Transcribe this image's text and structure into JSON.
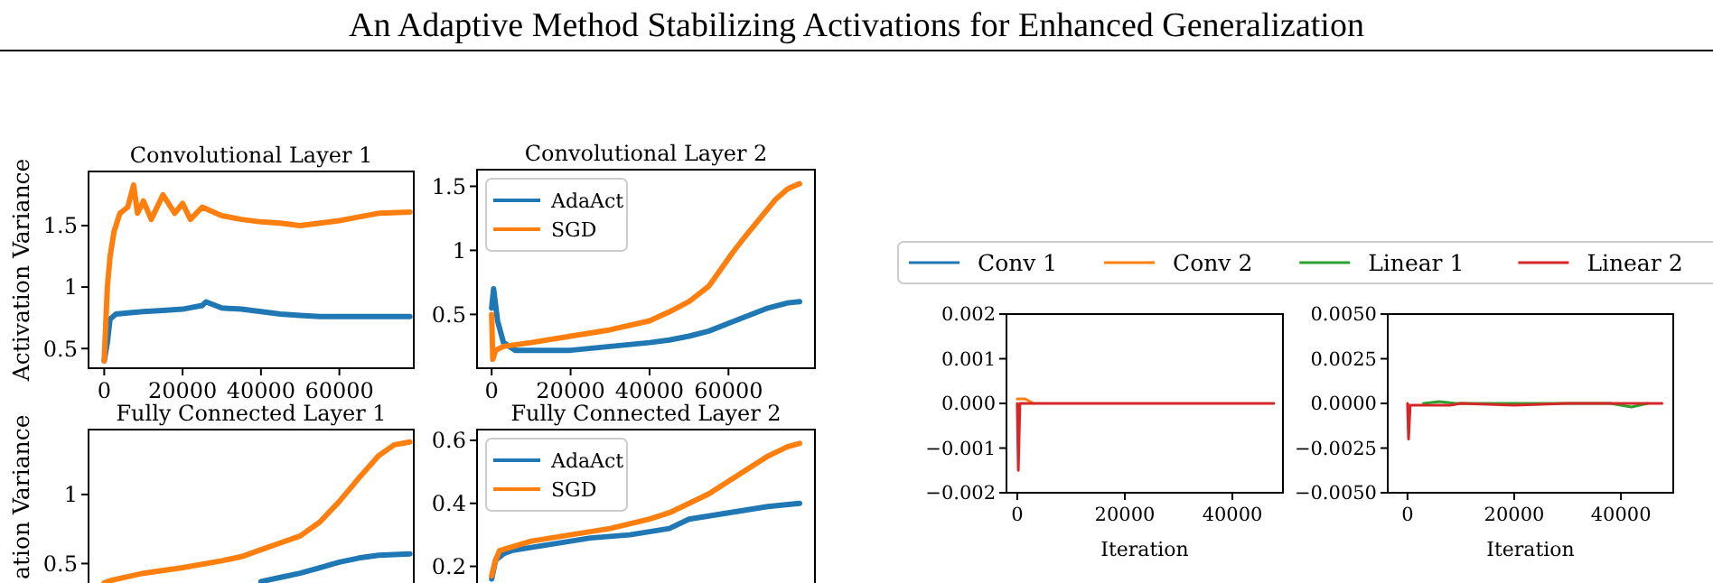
{
  "chart_data": [
    {
      "type": "line",
      "title": "Convolutional Layer 1",
      "ylabel": "Activation Variance",
      "annotations": [
        "An Adaptive Method Stabilizing Activations for Enhanced Generalization"
      ],
      "xlim": [
        -4000,
        79000
      ],
      "ylim": [
        0.34,
        1.94
      ],
      "xticks": [
        0,
        20000,
        40000,
        60000
      ],
      "yticks": [
        0.5,
        1.0,
        1.5
      ],
      "legend": false,
      "series": [
        {
          "color": "#1f77b4",
          "x": [
            0,
            800,
            1500,
            3000,
            6000,
            10000,
            15000,
            20000,
            25000,
            26000,
            30000,
            35000,
            40000,
            45000,
            50000,
            55000,
            60000,
            65000,
            70000,
            78000
          ],
          "values": [
            0.4,
            0.55,
            0.74,
            0.78,
            0.79,
            0.8,
            0.81,
            0.82,
            0.85,
            0.88,
            0.83,
            0.82,
            0.8,
            0.78,
            0.77,
            0.76,
            0.76,
            0.76,
            0.76,
            0.76
          ]
        },
        {
          "color": "#ff7f0e",
          "x": [
            0,
            800,
            1500,
            2500,
            4000,
            6000,
            7500,
            8500,
            10000,
            12000,
            15000,
            18000,
            20000,
            22000,
            25000,
            30000,
            35000,
            40000,
            45000,
            50000,
            55000,
            60000,
            65000,
            70000,
            78000
          ],
          "values": [
            0.4,
            1.0,
            1.25,
            1.45,
            1.6,
            1.65,
            1.83,
            1.6,
            1.7,
            1.55,
            1.75,
            1.6,
            1.68,
            1.55,
            1.65,
            1.58,
            1.55,
            1.53,
            1.52,
            1.5,
            1.52,
            1.54,
            1.57,
            1.6,
            1.61
          ]
        }
      ]
    },
    {
      "type": "line",
      "title": "Convolutional Layer 2",
      "xlim": [
        -3700,
        81900
      ],
      "ylim": [
        0.08,
        1.63
      ],
      "xticks": [
        0,
        20000,
        40000,
        60000
      ],
      "yticks": [
        0.5,
        1.0,
        1.5
      ],
      "legend": "top left",
      "series": [
        {
          "name": "AdaAct",
          "color": "#1f77b4",
          "x": [
            0,
            500,
            1500,
            3000,
            6000,
            10000,
            20000,
            30000,
            40000,
            45000,
            50000,
            55000,
            60000,
            65000,
            70000,
            75000,
            78000
          ],
          "values": [
            0.55,
            0.7,
            0.45,
            0.28,
            0.22,
            0.22,
            0.22,
            0.25,
            0.28,
            0.3,
            0.33,
            0.37,
            0.43,
            0.49,
            0.55,
            0.59,
            0.6
          ]
        },
        {
          "name": "SGD",
          "color": "#ff7f0e",
          "x": [
            0,
            300,
            1000,
            3000,
            10000,
            20000,
            30000,
            40000,
            45000,
            50000,
            55000,
            58000,
            61000,
            64000,
            68000,
            72000,
            75000,
            78000
          ],
          "values": [
            0.5,
            0.15,
            0.22,
            0.25,
            0.28,
            0.33,
            0.38,
            0.45,
            0.52,
            0.6,
            0.72,
            0.85,
            0.98,
            1.1,
            1.25,
            1.4,
            1.48,
            1.52
          ]
        }
      ]
    },
    {
      "type": "line",
      "title": "Fully Connected Layer 1",
      "ylabel": "ation Variance",
      "tick_labels": "y",
      "xlim": [
        -4000,
        79000
      ],
      "ylim": [
        0.32,
        1.47
      ],
      "yticks": [
        0.5,
        1.0
      ],
      "legend": false,
      "series": [
        {
          "color": "#1f77b4",
          "x": [
            40000,
            45000,
            50000,
            55000,
            60000,
            65000,
            70000,
            78000
          ],
          "values": [
            0.37,
            0.4,
            0.43,
            0.47,
            0.51,
            0.54,
            0.56,
            0.57
          ]
        },
        {
          "color": "#ff7f0e",
          "x": [
            0,
            2000,
            10000,
            20000,
            30000,
            35000,
            40000,
            45000,
            50000,
            55000,
            60000,
            65000,
            70000,
            74000,
            78000
          ],
          "values": [
            0.36,
            0.38,
            0.43,
            0.47,
            0.52,
            0.55,
            0.6,
            0.65,
            0.7,
            0.8,
            0.95,
            1.12,
            1.28,
            1.36,
            1.38
          ]
        }
      ]
    },
    {
      "type": "line",
      "title": "Fully Connected Layer 2",
      "tick_labels": "y",
      "xlim": [
        -3700,
        81900
      ],
      "ylim": [
        0.13,
        0.634
      ],
      "yticks": [
        0.2,
        0.4,
        0.6
      ],
      "legend": "top left",
      "series": [
        {
          "name": "AdaAct",
          "color": "#1f77b4",
          "x": [
            0,
            1000,
            3000,
            5000,
            15000,
            25000,
            35000,
            45000,
            50000,
            55000,
            60000,
            65000,
            70000,
            78000
          ],
          "values": [
            0.16,
            0.22,
            0.24,
            0.25,
            0.27,
            0.29,
            0.3,
            0.32,
            0.35,
            0.36,
            0.37,
            0.38,
            0.39,
            0.4
          ]
        },
        {
          "name": "SGD",
          "color": "#ff7f0e",
          "x": [
            0,
            1000,
            2000,
            10000,
            20000,
            30000,
            40000,
            45000,
            50000,
            55000,
            60000,
            65000,
            70000,
            75000,
            78000
          ],
          "values": [
            0.17,
            0.22,
            0.25,
            0.28,
            0.3,
            0.32,
            0.35,
            0.37,
            0.4,
            0.43,
            0.47,
            0.51,
            0.55,
            0.58,
            0.59
          ]
        }
      ]
    },
    {
      "type": "line",
      "xlabel": "Iteration",
      "xlim": [
        -2000,
        49400
      ],
      "ylim": [
        -0.002,
        0.002
      ],
      "xticks": [
        0,
        20000,
        40000
      ],
      "yticks": [
        {
          "value": -0.002,
          "label": "−0.002"
        },
        {
          "value": -0.001,
          "label": "−0.001"
        },
        {
          "value": 0,
          "label": "0.000"
        },
        0.001,
        0.002
      ],
      "legend": "top",
      "series": [
        {
          "name": "Conv 1",
          "color": "#1f77b4"
        },
        {
          "name": "Conv 2",
          "color": "#ff7f0e",
          "x": [
            0,
            300,
            1500,
            3000
          ],
          "values": [
            0.0001,
            0.0001,
            0.0001,
            0
          ]
        },
        {
          "name": "Linear 1",
          "color": "#2ca02c"
        },
        {
          "name": "Linear 2",
          "color": "#d62728",
          "x": [
            0,
            200,
            500,
            10000,
            20000,
            30000,
            40000,
            47700
          ],
          "values": [
            0,
            -0.0015,
            0,
            0,
            0,
            0,
            0,
            0
          ]
        }
      ]
    },
    {
      "type": "line",
      "xlabel": "Iteration",
      "xlim": [
        -3700,
        49800
      ],
      "ylim": [
        -0.005,
        0.005
      ],
      "xticks": [
        0,
        20000,
        40000
      ],
      "yticks": [
        {
          "value": -0.005,
          "label": "−0.0050"
        },
        {
          "value": -0.0025,
          "label": "−0.0025"
        },
        {
          "value": 0,
          "label": "0.0000"
        },
        {
          "value": 0.0025,
          "label": "0.0025"
        },
        {
          "value": 0.005,
          "label": "0.0050"
        }
      ],
      "legend": false,
      "series": [
        {
          "color": "#2ca02c",
          "x": [
            3000,
            6000,
            9000,
            38000,
            42000,
            45000
          ],
          "values": [
            0,
            0.0001,
            0,
            0,
            -0.0002,
            0
          ]
        },
        {
          "color": "#d62728",
          "x": [
            0,
            200,
            500,
            8000,
            10000,
            20000,
            30000,
            40000,
            47700
          ],
          "values": [
            0,
            -0.002,
            -0.0001,
            -0.0001,
            0,
            -0.0001,
            0,
            0,
            0
          ]
        }
      ]
    }
  ]
}
